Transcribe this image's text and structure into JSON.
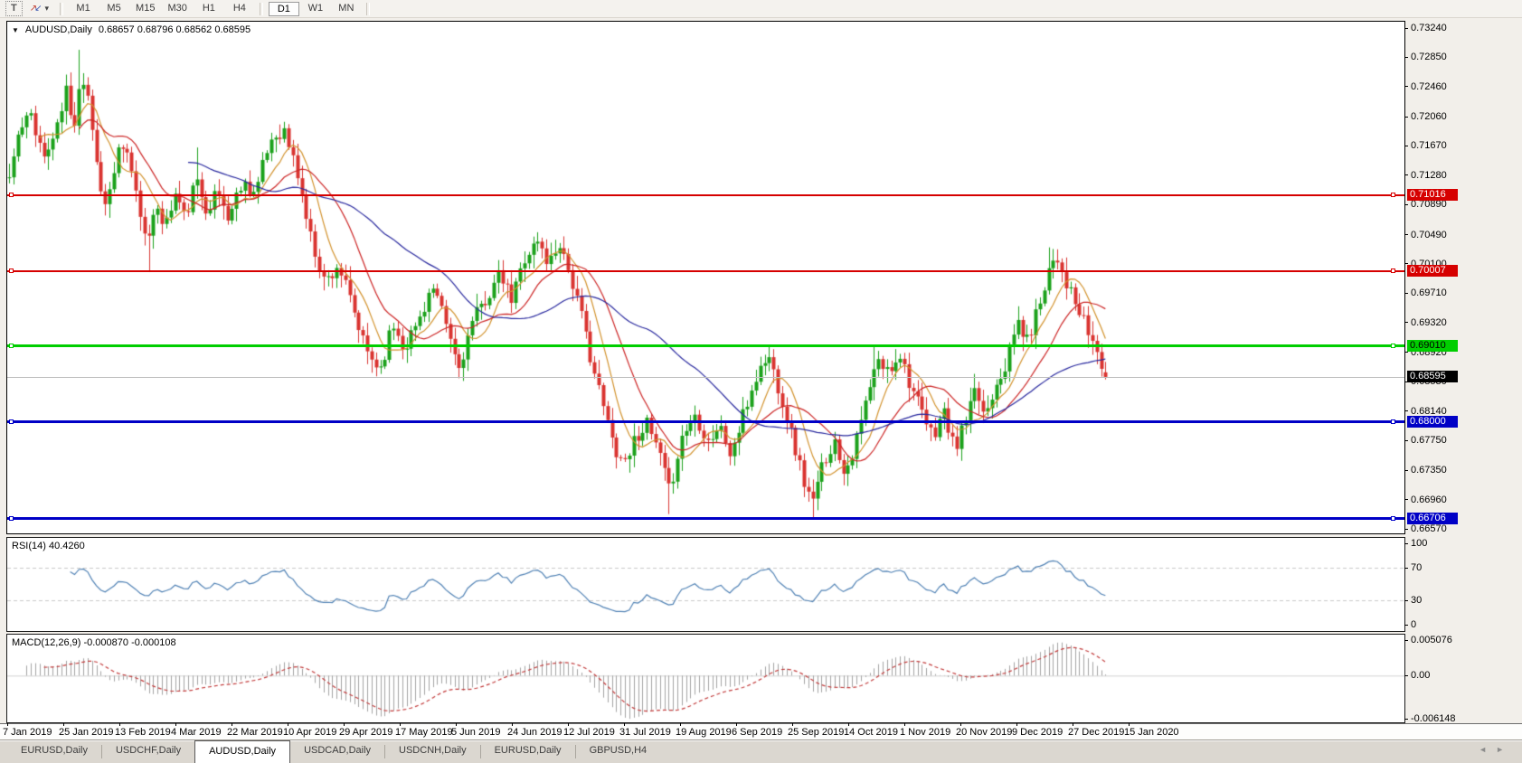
{
  "toolbar": {
    "text_tool_label": "T",
    "draw_icon_up": "↗",
    "draw_icon_down": "↙",
    "dropdown_icon": "▾",
    "timeframes": [
      "M1",
      "M5",
      "M15",
      "M30",
      "H1",
      "H4",
      "D1",
      "W1",
      "MN"
    ],
    "active_timeframe": "D1"
  },
  "chart": {
    "collapse_icon": "▼",
    "title": "AUDUSD,Daily",
    "ohlc_text": "0.68657 0.68796 0.68562 0.68595",
    "price_axis_ticks": [
      "0.73240",
      "0.72850",
      "0.72460",
      "0.72060",
      "0.71670",
      "0.71280",
      "0.70890",
      "0.70490",
      "0.70100",
      "0.69710",
      "0.69320",
      "0.68920",
      "0.68530",
      "0.68140",
      "0.67750",
      "0.67350",
      "0.66960",
      "0.66570"
    ],
    "levels": [
      {
        "label": "0.71016",
        "price": 0.71016,
        "color": "#d60000",
        "text_color": "#ffffff",
        "thickness": 2
      },
      {
        "label": "0.70007",
        "price": 0.70007,
        "color": "#d60000",
        "text_color": "#ffffff",
        "thickness": 2
      },
      {
        "label": "0.69010",
        "price": 0.6901,
        "color": "#00ce00",
        "text_color": "#000000",
        "thickness": 3
      },
      {
        "label": "0.68000",
        "price": 0.68,
        "color": "#0000c6",
        "text_color": "#ffffff",
        "thickness": 3
      },
      {
        "label": "0.66706",
        "price": 0.66706,
        "color": "#0000c6",
        "text_color": "#ffffff",
        "thickness": 3
      }
    ],
    "current_price": {
      "label": "0.68595",
      "price": 0.68595,
      "line_color": "#bdbdbd",
      "badge_bg": "#000000",
      "text_color": "#ffffff"
    },
    "up_color": "#1ba11b",
    "down_color": "#d93430"
  },
  "rsi_panel": {
    "label": "RSI(14) 40.4260",
    "scale_ticks": [
      "100",
      "70",
      "30",
      "0"
    ],
    "scale_values": [
      100,
      70,
      30,
      0
    ],
    "dashed_levels": [
      70,
      30
    ],
    "line_color": "#4f81b4"
  },
  "macd_panel": {
    "label": "MACD(12,26,9) -0.000870 -0.000108",
    "scale_ticks": [
      "0.005076",
      "0.00",
      "-0.006148"
    ],
    "scale_values": [
      0.005076,
      0.0,
      -0.006148
    ],
    "histogram_color": "#a3a3a3",
    "signal_color": "#c23b3b"
  },
  "date_axis": {
    "labels": [
      "7 Jan 2019",
      "25 Jan 2019",
      "13 Feb 2019",
      "4 Mar 2019",
      "22 Mar 2019",
      "10 Apr 2019",
      "29 Apr 2019",
      "17 May 2019",
      "5 Jun 2019",
      "24 Jun 2019",
      "12 Jul 2019",
      "31 Jul 2019",
      "19 Aug 2019",
      "6 Sep 2019",
      "25 Sep 2019",
      "14 Oct 2019",
      "1 Nov 2019",
      "20 Nov 2019",
      "9 Dec 2019",
      "27 Dec 2019",
      "15 Jan 2020"
    ]
  },
  "tabs": {
    "items": [
      {
        "label": "EURUSD,Daily",
        "active": false
      },
      {
        "label": "USDCHF,Daily",
        "active": false
      },
      {
        "label": "AUDUSD,Daily",
        "active": true
      },
      {
        "label": "USDCAD,Daily",
        "active": false
      },
      {
        "label": "USDCNH,Daily",
        "active": false
      },
      {
        "label": "EURUSD,Daily",
        "active": false
      },
      {
        "label": "GBPUSD,H4",
        "active": false
      }
    ],
    "scroll_left_icon": "◄",
    "scroll_right_icon": "►"
  },
  "chart_data": {
    "type": "candlestick",
    "symbol": "AUDUSD",
    "timeframe": "Daily",
    "x_start": "7 Jan 2019",
    "x_end": "15 Jan 2020",
    "price_range": [
      0.6657,
      0.7332
    ],
    "num_bars": 252,
    "last_bar": {
      "open": 0.68657,
      "high": 0.68796,
      "low": 0.68562,
      "close": 0.68595
    },
    "horizontal_levels": [
      0.71016,
      0.70007,
      0.6901,
      0.68,
      0.66706
    ],
    "moving_averages": [
      {
        "type": "sma",
        "period": 8,
        "color": "#d2922d"
      },
      {
        "type": "sma",
        "period": 17,
        "color": "#cc2525"
      },
      {
        "type": "sma",
        "period": 42,
        "color": "#28289e"
      }
    ],
    "indicators": [
      {
        "name": "RSI",
        "period": 14,
        "last_value": 40.426
      },
      {
        "name": "MACD",
        "params": [
          12,
          26,
          9
        ],
        "last_values": [
          -0.00087,
          -0.000108
        ]
      }
    ],
    "close_waypoints": [
      [
        0.0,
        0.7125
      ],
      [
        0.008,
        0.718
      ],
      [
        0.02,
        0.721
      ],
      [
        0.032,
        0.715
      ],
      [
        0.045,
        0.7195
      ],
      [
        0.052,
        0.7245
      ],
      [
        0.058,
        0.718
      ],
      [
        0.065,
        0.7265
      ],
      [
        0.072,
        0.7235
      ],
      [
        0.08,
        0.714
      ],
      [
        0.088,
        0.7085
      ],
      [
        0.1,
        0.716
      ],
      [
        0.11,
        0.715
      ],
      [
        0.118,
        0.7085
      ],
      [
        0.128,
        0.704
      ],
      [
        0.135,
        0.709
      ],
      [
        0.142,
        0.706
      ],
      [
        0.152,
        0.7105
      ],
      [
        0.16,
        0.707
      ],
      [
        0.17,
        0.712
      ],
      [
        0.18,
        0.7085
      ],
      [
        0.19,
        0.7105
      ],
      [
        0.2,
        0.707
      ],
      [
        0.212,
        0.712
      ],
      [
        0.225,
        0.7105
      ],
      [
        0.238,
        0.7175
      ],
      [
        0.25,
        0.719
      ],
      [
        0.262,
        0.7135
      ],
      [
        0.275,
        0.7045
      ],
      [
        0.288,
        0.6985
      ],
      [
        0.3,
        0.701
      ],
      [
        0.312,
        0.6955
      ],
      [
        0.325,
        0.6895
      ],
      [
        0.338,
        0.687
      ],
      [
        0.35,
        0.693
      ],
      [
        0.36,
        0.69
      ],
      [
        0.372,
        0.693
      ],
      [
        0.385,
        0.698
      ],
      [
        0.398,
        0.693
      ],
      [
        0.41,
        0.687
      ],
      [
        0.422,
        0.693
      ],
      [
        0.435,
        0.6965
      ],
      [
        0.448,
        0.6995
      ],
      [
        0.458,
        0.696
      ],
      [
        0.47,
        0.702
      ],
      [
        0.482,
        0.704
      ],
      [
        0.492,
        0.701
      ],
      [
        0.502,
        0.704
      ],
      [
        0.512,
        0.6995
      ],
      [
        0.525,
        0.692
      ],
      [
        0.538,
        0.684
      ],
      [
        0.55,
        0.6775
      ],
      [
        0.56,
        0.6745
      ],
      [
        0.57,
        0.6775
      ],
      [
        0.58,
        0.68
      ],
      [
        0.592,
        0.676
      ],
      [
        0.602,
        0.6705
      ],
      [
        0.612,
        0.6775
      ],
      [
        0.625,
        0.681
      ],
      [
        0.638,
        0.6775
      ],
      [
        0.648,
        0.6795
      ],
      [
        0.658,
        0.6755
      ],
      [
        0.668,
        0.68
      ],
      [
        0.68,
        0.6855
      ],
      [
        0.692,
        0.689
      ],
      [
        0.702,
        0.6845
      ],
      [
        0.715,
        0.6775
      ],
      [
        0.726,
        0.6715
      ],
      [
        0.733,
        0.669
      ],
      [
        0.742,
        0.6745
      ],
      [
        0.752,
        0.6775
      ],
      [
        0.762,
        0.6735
      ],
      [
        0.772,
        0.677
      ],
      [
        0.782,
        0.683
      ],
      [
        0.792,
        0.688
      ],
      [
        0.802,
        0.6865
      ],
      [
        0.812,
        0.6895
      ],
      [
        0.822,
        0.685
      ],
      [
        0.832,
        0.681
      ],
      [
        0.842,
        0.678
      ],
      [
        0.852,
        0.6815
      ],
      [
        0.862,
        0.6762
      ],
      [
        0.872,
        0.68
      ],
      [
        0.882,
        0.684
      ],
      [
        0.89,
        0.6808
      ],
      [
        0.9,
        0.6855
      ],
      [
        0.91,
        0.688
      ],
      [
        0.92,
        0.6935
      ],
      [
        0.928,
        0.6905
      ],
      [
        0.938,
        0.695
      ],
      [
        0.948,
        0.7005
      ],
      [
        0.955,
        0.7025
      ],
      [
        0.963,
        0.699
      ],
      [
        0.972,
        0.6955
      ],
      [
        0.982,
        0.6925
      ],
      [
        0.99,
        0.69
      ],
      [
        1.0,
        0.68595
      ]
    ],
    "wick_overrides": [
      {
        "t": 0.052,
        "high": 0.7262
      },
      {
        "t": 0.065,
        "high": 0.7295
      },
      {
        "t": 0.128,
        "low": 0.7
      },
      {
        "t": 0.17,
        "high": 0.7165
      },
      {
        "t": 0.482,
        "high": 0.7048
      },
      {
        "t": 0.602,
        "low": 0.6677
      },
      {
        "t": 0.733,
        "low": 0.6671
      },
      {
        "t": 0.79,
        "high": 0.6901
      },
      {
        "t": 0.95,
        "high": 0.7032
      }
    ]
  }
}
